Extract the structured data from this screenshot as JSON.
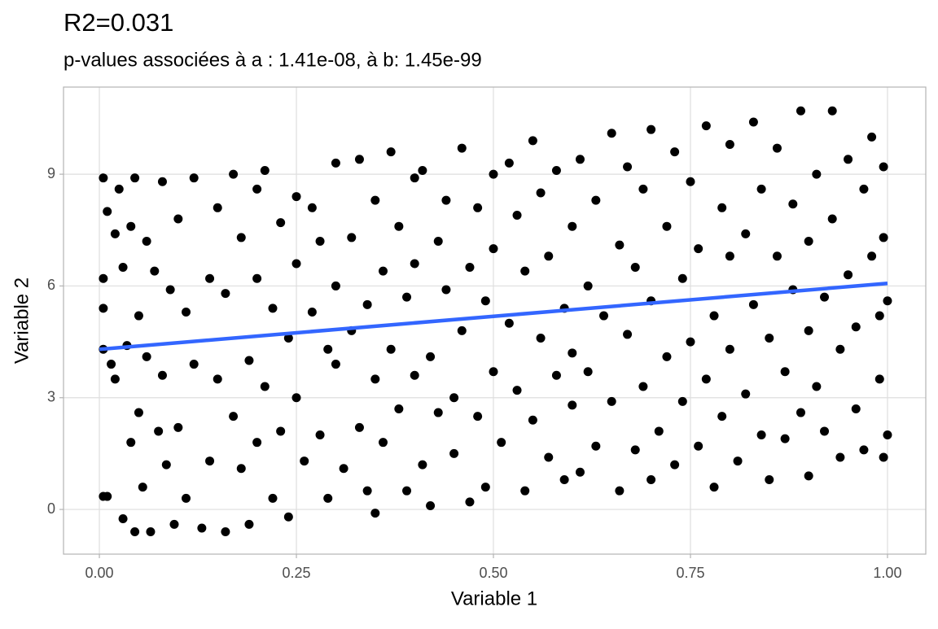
{
  "chart_data": {
    "type": "scatter",
    "title": "R2=0.031",
    "subtitle": "p-values associées à a : 1.41e-08, à b: 1.45e-99",
    "x_label": "Variable 1",
    "y_label": "Variable 2",
    "xlim": [
      -0.0455,
      1.0486
    ],
    "ylim": [
      -1.2,
      11.34
    ],
    "xticks": [
      {
        "value": 0,
        "label": "0.00"
      },
      {
        "value": 0.25,
        "label": "0.25"
      },
      {
        "value": 0.5,
        "label": "0.50"
      },
      {
        "value": 0.75,
        "label": "0.75"
      },
      {
        "value": 1,
        "label": "1.00"
      }
    ],
    "yticks": [
      0,
      3,
      6,
      9
    ],
    "grid": true,
    "series": [
      {
        "type": "scatter",
        "color": "#000000",
        "x": [
          0.005,
          0.005,
          0.005,
          0.005,
          0.005,
          0.01,
          0.01,
          0.015,
          0.02,
          0.02,
          0.025,
          0.03,
          0.03,
          0.035,
          0.04,
          0.04,
          0.045,
          0.045,
          0.05,
          0.05,
          0.055,
          0.06,
          0.06,
          0.065,
          0.07,
          0.075,
          0.08,
          0.08,
          0.085,
          0.09,
          0.095,
          0.1,
          0.1,
          0.11,
          0.11,
          0.12,
          0.12,
          0.13,
          0.14,
          0.14,
          0.15,
          0.15,
          0.16,
          0.16,
          0.17,
          0.17,
          0.18,
          0.18,
          0.19,
          0.19,
          0.2,
          0.2,
          0.2,
          0.21,
          0.21,
          0.22,
          0.22,
          0.23,
          0.23,
          0.24,
          0.24,
          0.25,
          0.25,
          0.25,
          0.26,
          0.27,
          0.27,
          0.28,
          0.28,
          0.29,
          0.29,
          0.3,
          0.3,
          0.3,
          0.31,
          0.32,
          0.32,
          0.33,
          0.33,
          0.34,
          0.34,
          0.35,
          0.35,
          0.35,
          0.36,
          0.36,
          0.37,
          0.37,
          0.38,
          0.38,
          0.39,
          0.39,
          0.4,
          0.4,
          0.4,
          0.41,
          0.41,
          0.42,
          0.42,
          0.43,
          0.43,
          0.44,
          0.44,
          0.45,
          0.45,
          0.46,
          0.46,
          0.47,
          0.47,
          0.48,
          0.48,
          0.49,
          0.49,
          0.5,
          0.5,
          0.5,
          0.51,
          0.52,
          0.52,
          0.53,
          0.53,
          0.54,
          0.54,
          0.55,
          0.55,
          0.56,
          0.56,
          0.57,
          0.57,
          0.58,
          0.58,
          0.59,
          0.59,
          0.6,
          0.6,
          0.6,
          0.61,
          0.61,
          0.62,
          0.62,
          0.63,
          0.63,
          0.64,
          0.65,
          0.65,
          0.66,
          0.66,
          0.67,
          0.67,
          0.68,
          0.68,
          0.69,
          0.69,
          0.7,
          0.7,
          0.7,
          0.71,
          0.72,
          0.72,
          0.73,
          0.73,
          0.74,
          0.74,
          0.75,
          0.75,
          0.76,
          0.76,
          0.77,
          0.77,
          0.78,
          0.78,
          0.79,
          0.79,
          0.8,
          0.8,
          0.8,
          0.81,
          0.82,
          0.82,
          0.83,
          0.83,
          0.84,
          0.84,
          0.85,
          0.85,
          0.86,
          0.86,
          0.87,
          0.87,
          0.88,
          0.88,
          0.89,
          0.89,
          0.9,
          0.9,
          0.9,
          0.91,
          0.91,
          0.92,
          0.92,
          0.93,
          0.93,
          0.94,
          0.94,
          0.95,
          0.95,
          0.96,
          0.96,
          0.97,
          0.97,
          0.98,
          0.98,
          0.99,
          0.99,
          0.995,
          0.995,
          0.995,
          1.0,
          1.0
        ],
        "values": [
          8.9,
          6.2,
          5.4,
          4.3,
          0.35,
          8.0,
          0.35,
          3.9,
          7.4,
          3.5,
          8.6,
          6.5,
          -0.25,
          4.4,
          7.6,
          1.8,
          8.9,
          -0.6,
          5.2,
          2.6,
          0.6,
          7.2,
          4.1,
          -0.6,
          6.4,
          2.1,
          8.8,
          3.6,
          1.2,
          5.9,
          -0.4,
          7.8,
          2.2,
          5.3,
          0.3,
          8.9,
          3.9,
          -0.5,
          6.2,
          1.3,
          8.1,
          3.5,
          5.8,
          -0.6,
          9.0,
          2.5,
          7.3,
          1.1,
          4.0,
          -0.4,
          8.6,
          6.2,
          1.8,
          9.1,
          3.3,
          5.4,
          0.3,
          7.7,
          2.1,
          4.6,
          -0.2,
          8.4,
          6.6,
          3.0,
          1.3,
          5.3,
          8.1,
          2.0,
          7.2,
          4.3,
          0.3,
          9.3,
          6.0,
          3.9,
          1.1,
          7.3,
          4.8,
          9.4,
          2.2,
          0.5,
          5.5,
          8.3,
          3.5,
          -0.1,
          6.4,
          1.8,
          9.6,
          4.3,
          7.6,
          2.7,
          5.7,
          0.5,
          8.9,
          3.6,
          6.6,
          1.2,
          9.1,
          4.1,
          0.1,
          7.2,
          2.6,
          5.9,
          8.3,
          3.0,
          1.5,
          9.7,
          4.8,
          6.5,
          0.2,
          8.1,
          2.5,
          5.6,
          0.6,
          9.0,
          3.7,
          7.0,
          1.8,
          9.3,
          5.0,
          3.2,
          7.9,
          0.5,
          6.4,
          9.9,
          2.4,
          4.6,
          8.5,
          1.4,
          6.8,
          3.6,
          9.1,
          5.4,
          0.8,
          7.6,
          2.8,
          4.2,
          9.4,
          1.0,
          6.0,
          3.7,
          8.3,
          1.7,
          5.2,
          10.1,
          2.9,
          7.1,
          0.5,
          4.7,
          9.2,
          1.6,
          6.5,
          3.3,
          8.6,
          0.8,
          5.6,
          10.2,
          2.1,
          7.6,
          4.1,
          9.6,
          1.2,
          6.2,
          2.9,
          8.8,
          4.5,
          1.7,
          7.0,
          10.3,
          3.5,
          5.2,
          0.6,
          8.1,
          2.5,
          6.8,
          9.8,
          4.3,
          1.3,
          7.4,
          3.1,
          10.4,
          5.5,
          2.0,
          8.6,
          4.6,
          0.8,
          6.8,
          9.7,
          3.7,
          1.9,
          5.9,
          8.2,
          2.6,
          10.7,
          4.8,
          7.2,
          0.9,
          9.0,
          3.3,
          5.7,
          2.1,
          10.7,
          7.8,
          4.3,
          1.4,
          9.4,
          6.3,
          2.7,
          4.9,
          8.6,
          1.6,
          10.0,
          6.8,
          3.5,
          5.2,
          1.4,
          9.2,
          7.3,
          2.0,
          5.6
        ]
      },
      {
        "type": "line",
        "color": "#3366ff",
        "x": [
          0,
          1
        ],
        "values": [
          4.3,
          6.07
        ]
      }
    ]
  }
}
